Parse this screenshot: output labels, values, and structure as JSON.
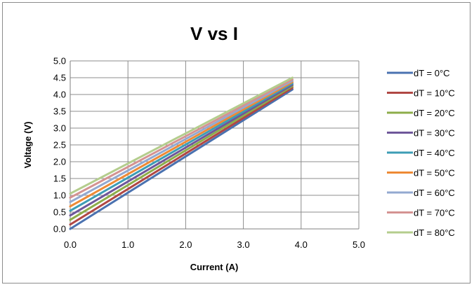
{
  "chart_data": {
    "type": "line",
    "title": "V vs I",
    "xlabel": "Current (A)",
    "ylabel": "Voltage (V)",
    "xlim": [
      0,
      5
    ],
    "ylim": [
      0,
      5
    ],
    "xticks": [
      "0.0",
      "1.0",
      "2.0",
      "3.0",
      "4.0",
      "5.0"
    ],
    "yticks": [
      "0.0",
      "0.5",
      "1.0",
      "1.5",
      "2.0",
      "2.5",
      "3.0",
      "3.5",
      "4.0",
      "4.5",
      "5.0"
    ],
    "grid": true,
    "legend_position": "right",
    "series": [
      {
        "name": "dT = 0°C",
        "color": "#4a72b0",
        "x": [
          0,
          3.85
        ],
        "y": [
          0.0,
          4.15
        ]
      },
      {
        "name": "dT = 10°C",
        "color": "#b04744",
        "x": [
          0,
          3.85
        ],
        "y": [
          0.13,
          4.2
        ]
      },
      {
        "name": "dT = 20°C",
        "color": "#8dad4a",
        "x": [
          0,
          3.85
        ],
        "y": [
          0.27,
          4.25
        ]
      },
      {
        "name": "dT = 30°C",
        "color": "#6f579a",
        "x": [
          0,
          3.85
        ],
        "y": [
          0.4,
          4.29
        ]
      },
      {
        "name": "dT = 40°C",
        "color": "#3d9db5",
        "x": [
          0,
          3.85
        ],
        "y": [
          0.54,
          4.33
        ]
      },
      {
        "name": "dT = 50°C",
        "color": "#ee8a35",
        "x": [
          0,
          3.85
        ],
        "y": [
          0.67,
          4.37
        ]
      },
      {
        "name": "dT = 60°C",
        "color": "#93a9d0",
        "x": [
          0,
          3.85
        ],
        "y": [
          0.8,
          4.41
        ]
      },
      {
        "name": "dT = 70°C",
        "color": "#d49392",
        "x": [
          0,
          3.85
        ],
        "y": [
          0.93,
          4.45
        ]
      },
      {
        "name": "dT = 80°C",
        "color": "#b4cd8d",
        "x": [
          0,
          3.85
        ],
        "y": [
          1.05,
          4.5
        ]
      }
    ]
  }
}
